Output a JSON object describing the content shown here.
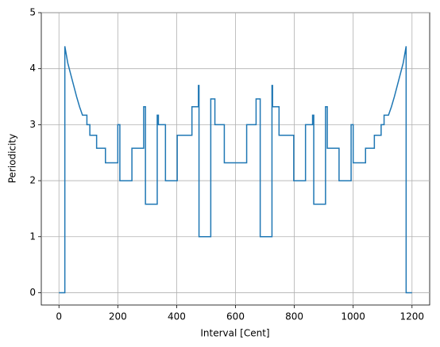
{
  "chart_data": {
    "type": "line",
    "xlabel": "Interval [Cent]",
    "ylabel": "Periodicity",
    "xlim": [
      -60,
      1260
    ],
    "ylim": [
      -0.22,
      5
    ],
    "xticks": [
      0,
      200,
      400,
      600,
      800,
      1000,
      1200
    ],
    "yticks": [
      0,
      1,
      2,
      3,
      4,
      5
    ],
    "grid": true,
    "series": [
      {
        "color": "#1f77b4",
        "x": [
          0,
          20,
          20,
          30,
          40,
          50,
          60,
          70,
          80,
          95,
          95,
          105,
          105,
          128,
          128,
          158,
          158,
          200,
          200,
          207,
          207,
          248,
          248,
          288,
          288,
          294,
          294,
          334,
          334,
          338,
          338,
          362,
          362,
          402,
          402,
          452,
          452,
          474,
          474,
          476,
          476,
          516,
          516,
          530,
          530,
          562,
          562,
          600,
          638,
          638,
          670,
          670,
          684,
          684,
          724,
          724,
          726,
          726,
          748,
          748,
          798,
          798,
          838,
          838,
          862,
          862,
          866,
          866,
          906,
          906,
          912,
          912,
          952,
          952,
          993,
          993,
          1000,
          1000,
          1042,
          1042,
          1072,
          1072,
          1095,
          1095,
          1105,
          1105,
          1120,
          1130,
          1140,
          1150,
          1160,
          1170,
          1180,
          1180,
          1200
        ],
        "values": [
          0,
          0,
          4.4,
          4.1,
          3.9,
          3.7,
          3.5,
          3.32,
          3.17,
          3.17,
          3.0,
          3.0,
          2.81,
          2.81,
          2.58,
          2.58,
          2.32,
          2.32,
          3.0,
          3.0,
          2.0,
          2.0,
          2.58,
          2.58,
          3.32,
          3.32,
          1.58,
          1.58,
          3.17,
          3.17,
          3.0,
          3.0,
          2.0,
          2.0,
          2.81,
          2.81,
          3.32,
          3.32,
          3.7,
          3.7,
          1.0,
          1.0,
          3.46,
          3.46,
          3.0,
          3.0,
          2.32,
          2.32,
          2.32,
          3.0,
          3.0,
          3.46,
          3.46,
          1.0,
          1.0,
          3.7,
          3.7,
          3.32,
          3.32,
          2.81,
          2.81,
          2.0,
          2.0,
          3.0,
          3.0,
          3.17,
          3.17,
          1.58,
          1.58,
          3.32,
          3.32,
          2.58,
          2.58,
          2.0,
          2.0,
          3.0,
          3.0,
          2.32,
          2.32,
          2.58,
          2.58,
          2.81,
          2.81,
          3.0,
          3.0,
          3.17,
          3.17,
          3.32,
          3.5,
          3.7,
          3.9,
          4.1,
          4.4,
          0,
          0
        ]
      }
    ]
  }
}
